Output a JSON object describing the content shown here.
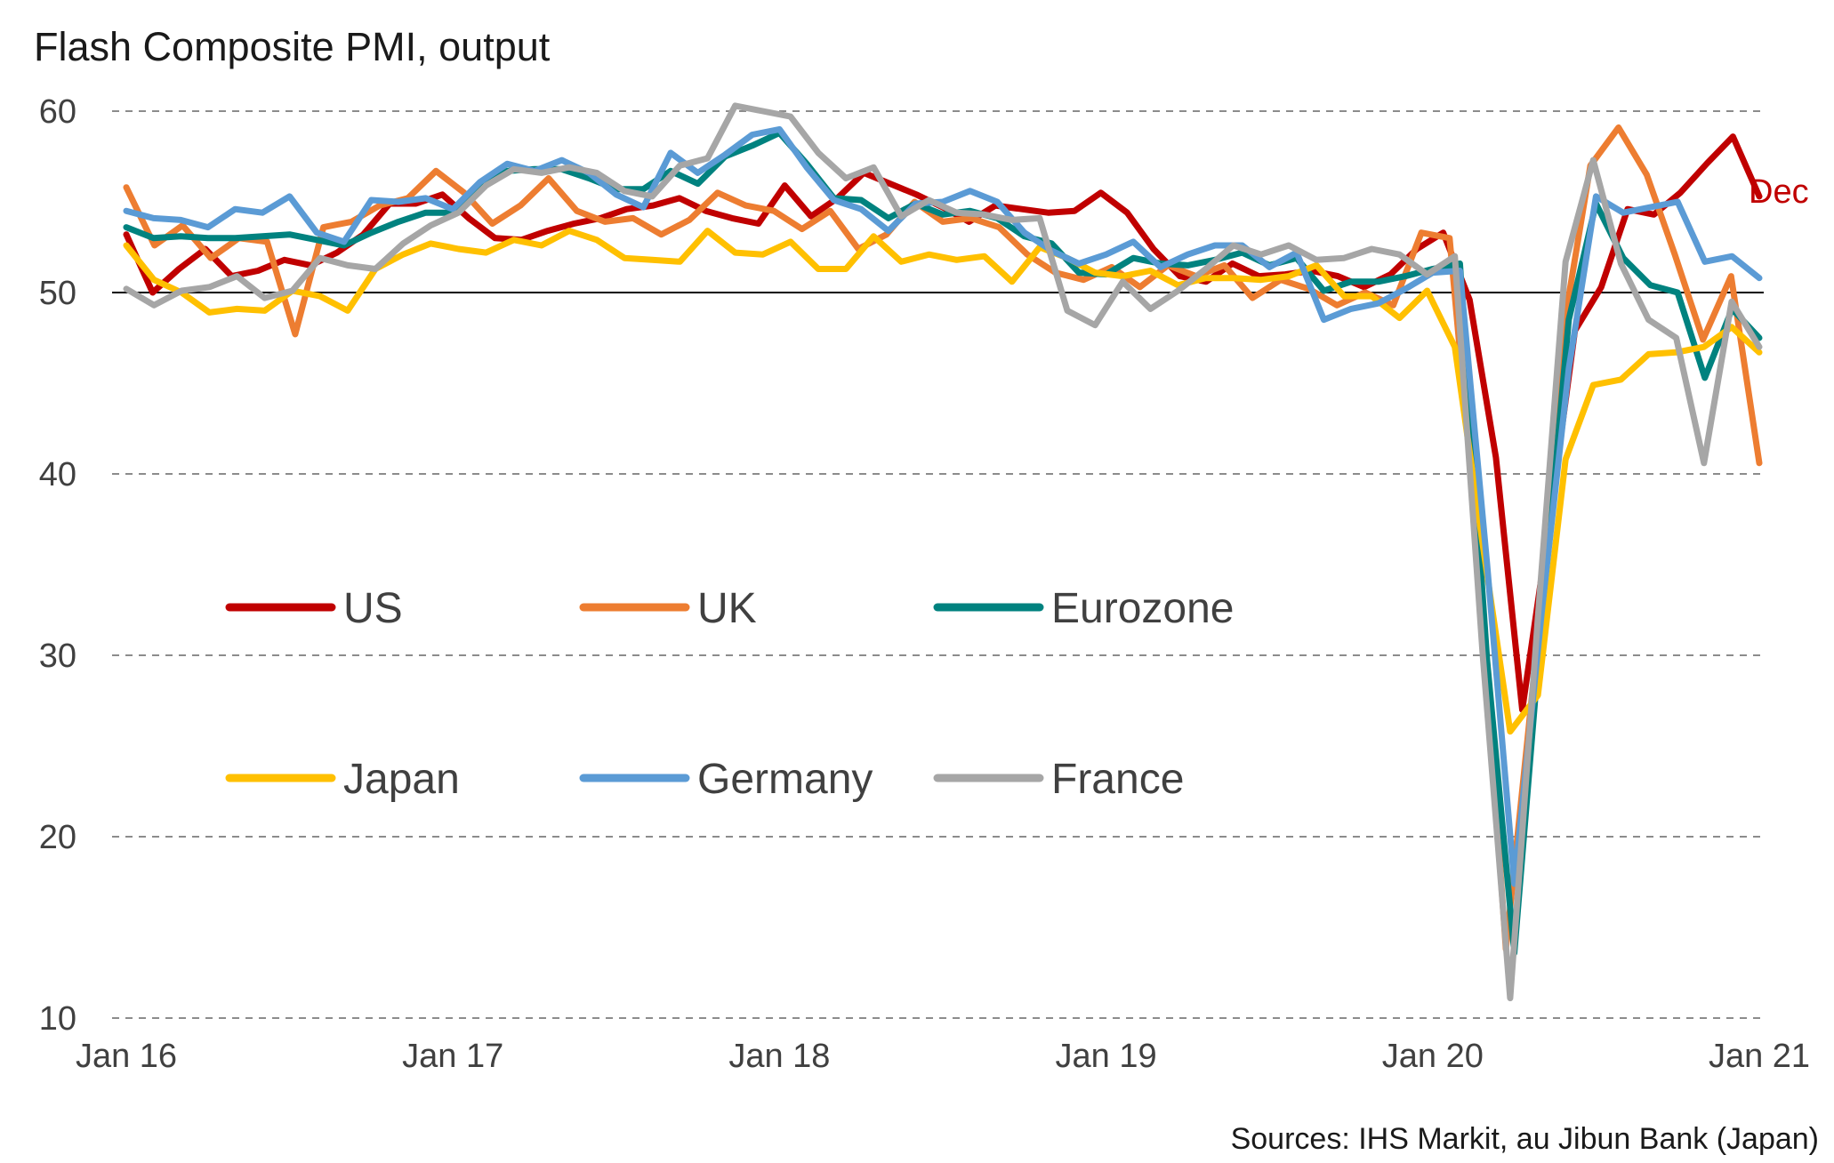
{
  "chart_data": {
    "type": "line",
    "title": "Flash Composite PMI, output",
    "source": "Sources: IHS Markit, au Jibun Bank (Japan)",
    "x_tick_labels": [
      "Jan 16",
      "Jan 17",
      "Jan 18",
      "Jan 19",
      "Jan 20",
      "Jan 21"
    ],
    "x_range": [
      "Jan 16",
      "Jan 21"
    ],
    "ylim": [
      10,
      60
    ],
    "yticks": [
      10,
      20,
      30,
      40,
      50,
      60
    ],
    "reference_line": 50,
    "grid": true,
    "legend_position": "inside-middle-left",
    "annotation": {
      "text": "Dec",
      "series": "US",
      "color": "#C00000"
    },
    "series": [
      {
        "name": "US",
        "color": "#C00000",
        "values": [
          53.2,
          50.0,
          51.3,
          52.4,
          50.9,
          51.2,
          51.8,
          51.5,
          52.2,
          53.2,
          54.9,
          54.9,
          55.4,
          54.1,
          53.0,
          52.9,
          53.4,
          53.8,
          54.1,
          54.6,
          54.8,
          55.2,
          54.5,
          54.1,
          53.8,
          55.9,
          54.2,
          55.2,
          56.6,
          56.0,
          55.4,
          54.7,
          53.9,
          54.8,
          54.6,
          54.4,
          54.5,
          55.5,
          54.4,
          52.4,
          50.9,
          50.6,
          51.6,
          50.9,
          51.0,
          51.2,
          50.9,
          50.3,
          51.0,
          52.4,
          53.3,
          49.6,
          40.9,
          27.0,
          37.0,
          47.9,
          50.3,
          54.6,
          54.3,
          55.5,
          57.1,
          58.6,
          55.3
        ]
      },
      {
        "name": "UK",
        "color": "#ED7D31",
        "values": [
          55.8,
          52.6,
          53.7,
          51.9,
          53.0,
          52.8,
          47.7,
          53.6,
          53.9,
          54.8,
          55.2,
          56.7,
          55.5,
          53.8,
          54.8,
          56.3,
          54.5,
          53.9,
          54.1,
          53.2,
          54.0,
          55.5,
          54.8,
          54.5,
          53.5,
          54.5,
          52.4,
          53.2,
          55.0,
          53.9,
          54.1,
          53.6,
          52.1,
          51.1,
          50.7,
          51.4,
          50.3,
          51.5,
          50.9,
          51.5,
          49.7,
          50.7,
          50.2,
          49.3,
          50.0,
          49.3,
          53.3,
          53.0,
          36.0,
          13.8,
          28.9,
          47.6,
          57.0,
          59.1,
          56.5,
          52.1,
          47.4,
          50.9,
          40.6
        ]
      },
      {
        "name": "Eurozone",
        "color": "#00827F",
        "values": [
          53.6,
          53.0,
          53.1,
          53.0,
          53.0,
          53.1,
          53.2,
          52.9,
          52.6,
          53.3,
          53.9,
          54.4,
          54.4,
          56.0,
          56.7,
          56.8,
          56.8,
          56.3,
          55.7,
          55.7,
          56.7,
          56.0,
          57.5,
          58.1,
          58.8,
          57.1,
          55.2,
          55.1,
          54.1,
          54.9,
          54.3,
          54.5,
          54.1,
          53.1,
          52.7,
          51.1,
          51.0,
          51.9,
          51.6,
          51.5,
          51.8,
          52.2,
          51.5,
          51.9,
          50.1,
          50.6,
          50.6,
          50.9,
          51.3,
          51.6,
          29.7,
          13.6,
          31.9,
          48.5,
          54.9,
          51.9,
          50.4,
          50.0,
          45.3,
          49.1,
          47.5
        ]
      },
      {
        "name": "Japan",
        "color": "#FFC000",
        "values": [
          52.6,
          50.7,
          50.0,
          48.9,
          49.1,
          49.0,
          50.1,
          49.8,
          49.0,
          51.3,
          52.1,
          52.7,
          52.4,
          52.2,
          52.9,
          52.6,
          53.4,
          52.9,
          51.9,
          51.8,
          51.7,
          53.4,
          52.2,
          52.1,
          52.8,
          51.3,
          51.3,
          53.1,
          51.7,
          52.1,
          51.8,
          52.0,
          50.6,
          52.5,
          51.9,
          51.1,
          50.9,
          51.2,
          50.4,
          50.8,
          50.8,
          50.7,
          50.9,
          51.5,
          49.8,
          49.8,
          48.6,
          50.1,
          47.0,
          36.2,
          25.8,
          27.8,
          40.8,
          44.9,
          45.2,
          46.6,
          46.7,
          47.0,
          48.1,
          46.7
        ]
      },
      {
        "name": "Germany",
        "color": "#5B9BD5",
        "values": [
          54.5,
          54.1,
          54.0,
          53.6,
          54.6,
          54.4,
          55.3,
          53.3,
          52.8,
          55.1,
          55.0,
          55.2,
          54.6,
          56.1,
          57.1,
          56.7,
          57.3,
          56.6,
          55.4,
          54.7,
          57.7,
          56.6,
          57.6,
          58.7,
          59.0,
          56.9,
          55.1,
          54.6,
          53.4,
          54.9,
          55.0,
          55.6,
          55.0,
          53.3,
          52.3,
          51.6,
          52.1,
          52.8,
          51.4,
          52.1,
          52.6,
          52.6,
          51.4,
          52.2,
          48.5,
          49.1,
          49.4,
          50.2,
          51.1,
          51.2,
          35.0,
          17.4,
          32.3,
          45.8,
          55.3,
          54.4,
          54.7,
          55.0,
          51.7,
          52.0,
          50.8
        ]
      },
      {
        "name": "France",
        "color": "#A6A6A6",
        "values": [
          50.2,
          49.3,
          50.1,
          50.3,
          50.9,
          49.7,
          50.1,
          51.9,
          51.5,
          51.3,
          52.7,
          53.7,
          54.4,
          55.9,
          56.8,
          56.6,
          56.9,
          56.6,
          55.6,
          55.3,
          57.0,
          57.4,
          60.3,
          60.0,
          59.7,
          57.7,
          56.3,
          56.9,
          54.2,
          55.1,
          54.4,
          54.3,
          54.0,
          54.1,
          49.0,
          48.2,
          50.6,
          49.1,
          50.1,
          51.3,
          52.6,
          52.1,
          52.6,
          51.8,
          51.9,
          52.4,
          52.1,
          51.0,
          52.0,
          30.2,
          11.1,
          32.1,
          51.7,
          57.3,
          51.6,
          48.5,
          47.5,
          40.6,
          49.5,
          47.0
        ]
      }
    ]
  }
}
